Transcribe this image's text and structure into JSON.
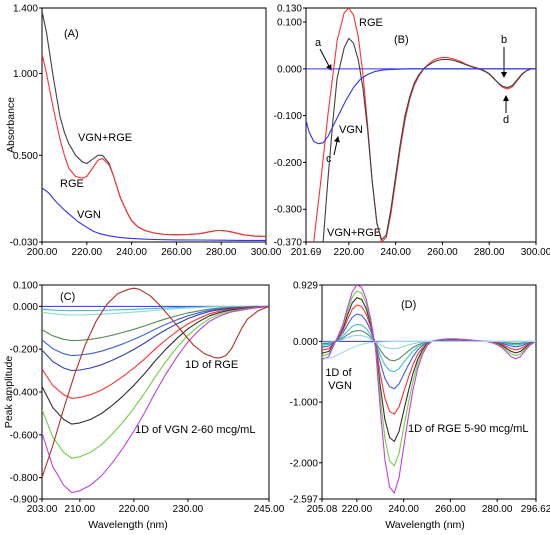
{
  "chart_data": [
    {
      "type": "line",
      "panel_label": "(A)",
      "ylabel": "Absorbance",
      "xlabel": "",
      "xlim": [
        200,
        300
      ],
      "ylim": [
        -0.03,
        1.4
      ],
      "xticks": [
        "200.00",
        "220.00",
        "240.00",
        "260.00",
        "280.00",
        "300.00"
      ],
      "x_tick_values": [
        200,
        220,
        240,
        260,
        280,
        300
      ],
      "yticks": [
        "-0.030",
        "0.500",
        "1.000",
        "1.400"
      ],
      "y_tick_values": [
        -0.03,
        0.5,
        1.0,
        1.4
      ],
      "series": [
        {
          "name": "VGN+RGE",
          "color": "#404040",
          "x": [
            200,
            202,
            205,
            208,
            210,
            212,
            215,
            218,
            220,
            222,
            225,
            227,
            230,
            232,
            235,
            238,
            240,
            243,
            246,
            250,
            255,
            260,
            265,
            270,
            275,
            278,
            280,
            283,
            285,
            290,
            295,
            300
          ],
          "y": [
            1.38,
            1.25,
            0.98,
            0.74,
            0.64,
            0.57,
            0.5,
            0.46,
            0.45,
            0.47,
            0.5,
            0.5,
            0.45,
            0.37,
            0.24,
            0.15,
            0.1,
            0.06,
            0.04,
            0.025,
            0.016,
            0.014,
            0.016,
            0.02,
            0.033,
            0.04,
            0.04,
            0.036,
            0.03,
            0.014,
            0.006,
            0.003
          ]
        },
        {
          "name": "RGE",
          "color": "#ff3030",
          "x": [
            200,
            202,
            205,
            208,
            210,
            212,
            215,
            218,
            220,
            222,
            225,
            227,
            230,
            232,
            235,
            238,
            240,
            243,
            246,
            250,
            255,
            260,
            265,
            270,
            275,
            278,
            280,
            283,
            285,
            290,
            295,
            300
          ],
          "y": [
            1.12,
            1.0,
            0.79,
            0.6,
            0.5,
            0.42,
            0.37,
            0.36,
            0.37,
            0.41,
            0.47,
            0.48,
            0.44,
            0.37,
            0.24,
            0.15,
            0.1,
            0.06,
            0.04,
            0.025,
            0.016,
            0.014,
            0.016,
            0.02,
            0.033,
            0.04,
            0.04,
            0.036,
            0.03,
            0.014,
            0.006,
            0.003
          ]
        },
        {
          "name": "VGN",
          "color": "#3030ff",
          "x": [
            200,
            203,
            206,
            210,
            213,
            216,
            220,
            223,
            226,
            230,
            235,
            240,
            245,
            250,
            260,
            270,
            280,
            290,
            300
          ],
          "y": [
            0.3,
            0.27,
            0.22,
            0.165,
            0.13,
            0.095,
            0.06,
            0.035,
            0.02,
            0.008,
            -0.003,
            -0.008,
            -0.012,
            -0.015,
            -0.017,
            -0.018,
            -0.019,
            -0.02,
            -0.02
          ]
        }
      ],
      "annotations": [
        "VGN+RGE",
        "RGE",
        "VGN"
      ]
    },
    {
      "type": "line",
      "panel_label": "(B)",
      "xlim": [
        201.69,
        300
      ],
      "ylim": [
        -0.37,
        0.13
      ],
      "xticks": [
        "201.69",
        "220.00",
        "240.00",
        "260.00",
        "280.00",
        "300.00"
      ],
      "x_tick_values": [
        201.69,
        220,
        240,
        260,
        280,
        300
      ],
      "yticks": [
        "-0.370",
        "-0.300",
        "-0.200",
        "-0.100",
        "0.000",
        "0.100",
        "0.130"
      ],
      "y_tick_values": [
        -0.37,
        -0.3,
        -0.2,
        -0.1,
        0.0,
        0.1,
        0.13
      ],
      "series": [
        {
          "name": "RGE",
          "color": "#ff3030",
          "x": [
            205,
            208,
            211,
            213,
            215,
            218,
            220,
            222,
            224,
            226,
            228,
            230,
            232,
            234,
            236,
            238,
            240,
            242,
            244,
            246,
            248,
            250,
            252,
            254,
            256,
            258,
            260,
            262,
            264,
            266,
            268,
            270,
            272,
            274,
            276,
            278,
            280,
            282,
            284,
            286,
            288,
            290,
            292,
            294,
            296,
            298,
            300
          ],
          "y": [
            -0.37,
            -0.24,
            -0.1,
            -0.02,
            0.06,
            0.12,
            0.13,
            0.115,
            0.07,
            -0.01,
            -0.12,
            -0.24,
            -0.33,
            -0.37,
            -0.36,
            -0.31,
            -0.24,
            -0.17,
            -0.11,
            -0.065,
            -0.035,
            -0.015,
            0.0,
            0.01,
            0.018,
            0.022,
            0.024,
            0.024,
            0.022,
            0.019,
            0.015,
            0.01,
            0.006,
            0.003,
            0.0,
            -0.004,
            -0.01,
            -0.02,
            -0.032,
            -0.04,
            -0.043,
            -0.038,
            -0.025,
            -0.012,
            -0.004,
            0.0,
            0.0
          ]
        },
        {
          "name": "VGN+RGE",
          "color": "#404040",
          "x": [
            209,
            211,
            213,
            215,
            218,
            220,
            222,
            224,
            226,
            228,
            230,
            232,
            234,
            236,
            238,
            240,
            242,
            244,
            246,
            248,
            250,
            252,
            254,
            256,
            258,
            260,
            262,
            264,
            266,
            268,
            270,
            272,
            274,
            276,
            278,
            280,
            282,
            284,
            286,
            288,
            290,
            292,
            294,
            296,
            298,
            300
          ],
          "y": [
            -0.37,
            -0.24,
            -0.12,
            -0.02,
            0.045,
            0.065,
            0.055,
            0.02,
            -0.04,
            -0.13,
            -0.24,
            -0.33,
            -0.365,
            -0.355,
            -0.3,
            -0.23,
            -0.16,
            -0.1,
            -0.06,
            -0.03,
            -0.012,
            0.0,
            0.008,
            0.014,
            0.018,
            0.02,
            0.02,
            0.019,
            0.016,
            0.013,
            0.009,
            0.005,
            0.002,
            -0.001,
            -0.005,
            -0.011,
            -0.021,
            -0.031,
            -0.038,
            -0.04,
            -0.035,
            -0.023,
            -0.011,
            -0.004,
            0.0,
            0.0
          ]
        },
        {
          "name": "VGN",
          "color": "#3030ff",
          "x": [
            201.69,
            203,
            205,
            207,
            209,
            211,
            213,
            216,
            219,
            222,
            225,
            228,
            231,
            235,
            240,
            245,
            250,
            260,
            270,
            280,
            290,
            300
          ],
          "y": [
            -0.11,
            -0.135,
            -0.155,
            -0.16,
            -0.158,
            -0.145,
            -0.125,
            -0.095,
            -0.065,
            -0.04,
            -0.022,
            -0.012,
            -0.006,
            -0.002,
            -0.001,
            0.0,
            0.0,
            0.0,
            0.0,
            0.0,
            0.0,
            0.0
          ]
        }
      ],
      "zero_line": true,
      "annotations": [
        "RGE",
        "VGN",
        "VGN+RGE",
        "a",
        "b",
        "c",
        "d"
      ]
    },
    {
      "type": "line",
      "panel_label": "(C)",
      "ylabel": "Peak amplitude",
      "xlabel": "Wavelength (nm)",
      "xlim": [
        203,
        245
      ],
      "ylim": [
        -0.9,
        0.1
      ],
      "xticks": [
        "203.00",
        "210.00",
        "220.00",
        "230.00",
        "245.00"
      ],
      "x_tick_values": [
        203,
        210,
        220,
        230,
        245
      ],
      "yticks": [
        "-0.900",
        "-0.800",
        "-0.600",
        "-0.400",
        "-0.200",
        "0.000",
        "0.100"
      ],
      "y_tick_values": [
        -0.9,
        -0.8,
        -0.6,
        -0.4,
        -0.2,
        0.0,
        0.1
      ],
      "vgn_profile_x": [
        203,
        205,
        207,
        208.5,
        210,
        212,
        214,
        216,
        218,
        220,
        222,
        224,
        226,
        228,
        230,
        232,
        234,
        236,
        238,
        240,
        242,
        245
      ],
      "vgn_profile_y": [
        0.68,
        0.86,
        0.96,
        1.0,
        0.99,
        0.96,
        0.91,
        0.84,
        0.76,
        0.67,
        0.57,
        0.46,
        0.36,
        0.27,
        0.19,
        0.13,
        0.08,
        0.05,
        0.03,
        0.02,
        0.01,
        0.0
      ],
      "series": [
        {
          "name": "",
          "color": "#40c0c0",
          "peak": -0.02
        },
        {
          "name": "",
          "color": "#8fd8d8",
          "peak": -0.04
        },
        {
          "name": "",
          "color": "#5a8a5a",
          "peak": -0.16
        },
        {
          "name": "",
          "color": "#4060e0",
          "peak": -0.23
        },
        {
          "name": "",
          "color": "#3040b0",
          "peak": -0.3
        },
        {
          "name": "",
          "color": "#ff3030",
          "peak": -0.43
        },
        {
          "name": "",
          "color": "#303030",
          "peak": -0.55
        },
        {
          "name": "",
          "color": "#70d040",
          "peak": -0.71
        },
        {
          "name": "",
          "color": "#c040e0",
          "peak": -0.87
        },
        {
          "name": "1D of RGE",
          "color": "#b03020",
          "x": [
            203,
            205,
            207,
            209,
            211,
            213,
            215,
            217,
            219,
            220,
            221,
            223,
            225,
            227,
            229,
            231,
            233,
            235,
            236,
            237,
            238,
            239,
            240,
            241,
            243,
            245
          ],
          "y": [
            -0.8,
            -0.65,
            -0.48,
            -0.32,
            -0.18,
            -0.07,
            0.01,
            0.06,
            0.08,
            0.085,
            0.08,
            0.05,
            0.0,
            -0.06,
            -0.12,
            -0.18,
            -0.22,
            -0.24,
            -0.24,
            -0.23,
            -0.2,
            -0.15,
            -0.1,
            -0.06,
            -0.02,
            0.0
          ]
        }
      ],
      "zero_line": true,
      "annotations": [
        "1D of RGE",
        "1D of VGN 2-60 mcg/mL"
      ]
    },
    {
      "type": "line",
      "panel_label": "(D)",
      "xlabel": "Wavelength (nm)",
      "xlim": [
        205.08,
        296.62
      ],
      "ylim": [
        -2.597,
        0.929
      ],
      "xticks": [
        "205.08",
        "220.00",
        "240.00",
        "260.00",
        "280.00",
        "296.62"
      ],
      "x_tick_values": [
        205.08,
        220,
        240,
        260,
        280,
        296.62
      ],
      "yticks": [
        "-2.597",
        "-2.000",
        "-1.000",
        "0.000",
        "0.929"
      ],
      "y_tick_values": [
        -2.597,
        -2.0,
        -1.0,
        0.0,
        0.929
      ],
      "rge_profile_x": [
        205,
        208,
        210,
        212,
        214,
        216,
        218,
        220,
        222,
        224,
        226,
        228,
        230,
        232,
        234,
        236,
        238,
        240,
        242,
        244,
        246,
        248,
        250,
        252,
        254,
        256,
        258,
        260,
        262,
        264,
        266,
        268,
        270,
        272,
        274,
        276,
        278,
        280,
        282,
        284,
        286,
        288,
        290,
        292,
        294,
        296.62
      ],
      "rge_profile_y": [
        -0.12,
        -0.1,
        -0.03,
        0.1,
        0.3,
        0.6,
        0.88,
        1.0,
        0.96,
        0.75,
        0.38,
        -0.05,
        -0.45,
        -0.78,
        -0.96,
        -1.0,
        -0.9,
        -0.7,
        -0.5,
        -0.32,
        -0.18,
        -0.09,
        -0.03,
        0.0,
        0.02,
        0.035,
        0.043,
        0.046,
        0.045,
        0.042,
        0.036,
        0.028,
        0.02,
        0.012,
        0.005,
        -0.002,
        -0.01,
        -0.022,
        -0.04,
        -0.07,
        -0.1,
        -0.115,
        -0.1,
        -0.06,
        -0.025,
        0.0
      ],
      "series": [
        {
          "name": "",
          "color": "#8fd8d8",
          "peak": 0.1,
          "trough": -0.12
        },
        {
          "name": "",
          "color": "#5a8a5a",
          "peak": 0.18,
          "trough": -0.32
        },
        {
          "name": "",
          "color": "#40c0c0",
          "peak": 0.28,
          "trough": -0.5
        },
        {
          "name": "",
          "color": "#4060e0",
          "peak": 0.45,
          "trough": -0.78
        },
        {
          "name": "",
          "color": "#ff3030",
          "peak": 0.6,
          "trough": -1.2
        },
        {
          "name": "",
          "color": "#303030",
          "peak": 0.72,
          "trough": -1.65
        },
        {
          "name": "",
          "color": "#70d040",
          "peak": 0.83,
          "trough": -2.05
        },
        {
          "name": "",
          "color": "#c040e0",
          "peak": 0.929,
          "trough": -2.5
        },
        {
          "name": "1D of VGN",
          "color": "#a0d8f0",
          "x": [
            205.08,
            207,
            209,
            211,
            213,
            215,
            217,
            219,
            221,
            223,
            225,
            228,
            232,
            236,
            240,
            245,
            250,
            260,
            270,
            280,
            290,
            296.62
          ],
          "y": [
            -0.26,
            -0.28,
            -0.27,
            -0.24,
            -0.2,
            -0.16,
            -0.12,
            -0.09,
            -0.06,
            -0.04,
            -0.025,
            -0.012,
            -0.005,
            -0.002,
            -0.001,
            0.0,
            0.0,
            0.0,
            0.0,
            0.0,
            0.0,
            0.0
          ]
        }
      ],
      "zero_line": true,
      "annotations": [
        "1D of\nVGN",
        "1D of RGE 5-90 mcg/mL"
      ]
    }
  ]
}
